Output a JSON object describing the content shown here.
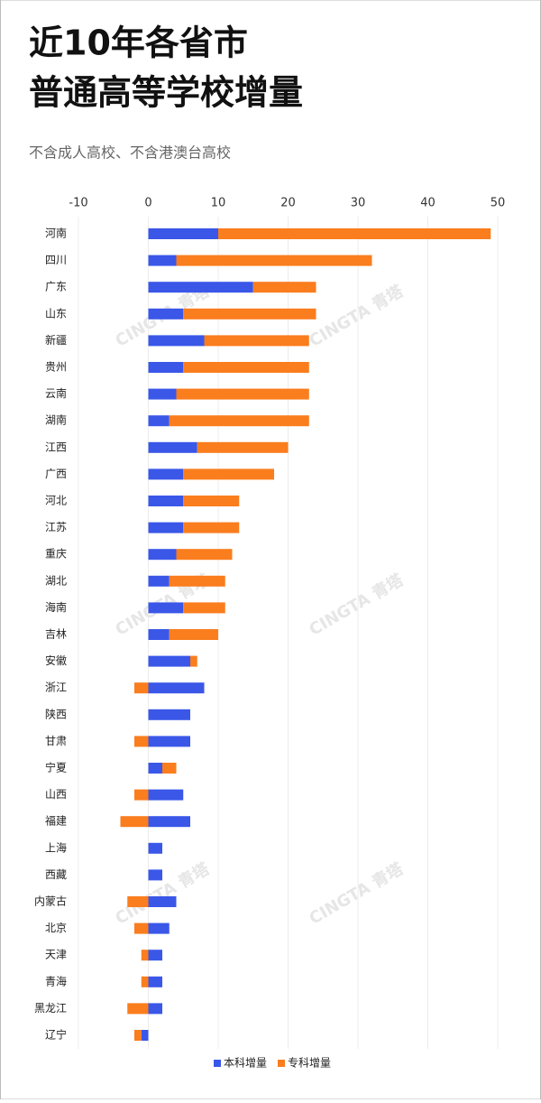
{
  "chart_data": {
    "type": "bar",
    "orientation": "horizontal",
    "stacked": true,
    "title": [
      "近10年各省市",
      "普通高等学校增量"
    ],
    "subtitle": "不含成人高校、不含港澳台高校",
    "watermark": "CINGTA 青塔",
    "categories": [
      "河南",
      "四川",
      "广东",
      "山东",
      "新疆",
      "贵州",
      "云南",
      "湖南",
      "江西",
      "广西",
      "河北",
      "江苏",
      "重庆",
      "湖北",
      "海南",
      "吉林",
      "安徽",
      "浙江",
      "陕西",
      "甘肃",
      "宁夏",
      "山西",
      "福建",
      "上海",
      "西藏",
      "内蒙古",
      "北京",
      "天津",
      "青海",
      "黑龙江",
      "辽宁"
    ],
    "series": [
      {
        "name": "本科增量",
        "color": "#3a57e8",
        "values": [
          10,
          4,
          15,
          5,
          8,
          5,
          4,
          3,
          7,
          5,
          5,
          5,
          4,
          3,
          5,
          3,
          6,
          8,
          6,
          6,
          2,
          5,
          6,
          2,
          2,
          4,
          3,
          2,
          2,
          2,
          -1
        ]
      },
      {
        "name": "专科增量",
        "color": "#fa7d1e",
        "values": [
          39,
          28,
          9,
          19,
          15,
          18,
          19,
          20,
          13,
          13,
          8,
          8,
          8,
          8,
          6,
          7,
          1,
          -2,
          0,
          -2,
          2,
          -2,
          -4,
          0,
          0,
          -3,
          -2,
          -1,
          -1,
          -3,
          -1
        ]
      }
    ],
    "xlim": [
      -10,
      50
    ],
    "xticks": [
      -10,
      0,
      10,
      20,
      30,
      40,
      50
    ],
    "grid": true,
    "legend": "bottom"
  }
}
